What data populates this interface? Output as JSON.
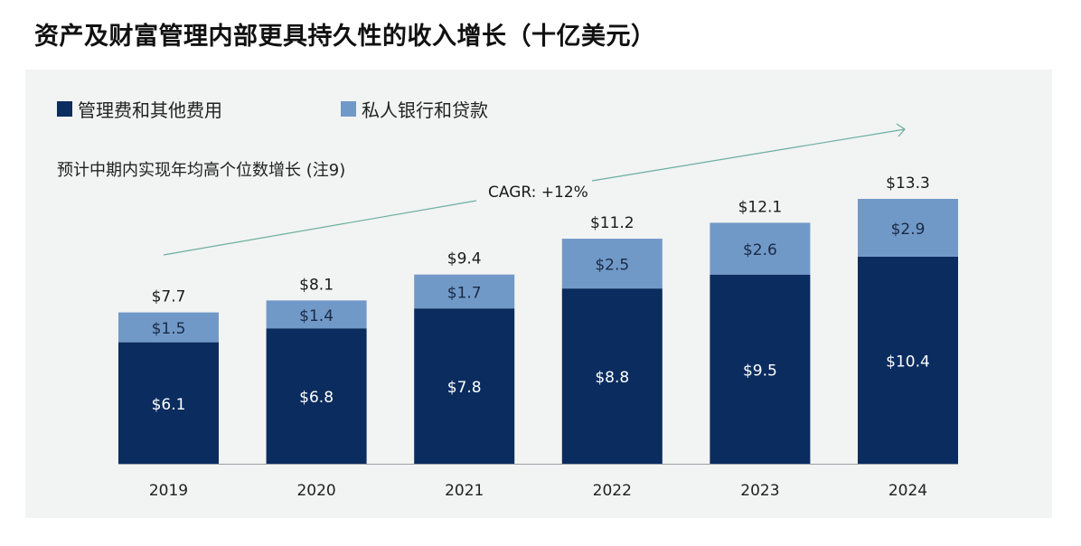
{
  "title": "资产及财富管理内部更具持久性的收入增长（十亿美元）",
  "legend": [
    {
      "label": "管理费和其他费用",
      "color": "#0b2c5f"
    },
    {
      "label": "私人银行和贷款",
      "color": "#7199c8"
    }
  ],
  "subtitle": "预计中期内实现年均高个位数增长 (注9)",
  "annotation": {
    "text": "CAGR: +12%",
    "line_color": "#6aaea0"
  },
  "chart_data": {
    "type": "bar",
    "stacked": true,
    "title": "资产及财富管理内部更具持久性的收入增长（十亿美元）",
    "xlabel": "",
    "ylabel": "",
    "ylim": [
      0,
      13.3
    ],
    "grid": false,
    "legend_position": "top-left",
    "categories": [
      "2019",
      "2020",
      "2021",
      "2022",
      "2023",
      "2024"
    ],
    "series": [
      {
        "name": "管理费和其他费用",
        "values": [
          6.1,
          6.8,
          7.8,
          8.8,
          9.5,
          10.4
        ],
        "labels": [
          "$6.1",
          "$6.8",
          "$7.8",
          "$8.8",
          "$9.5",
          "$10.4"
        ],
        "color": "#0b2c5f"
      },
      {
        "name": "私人银行和贷款",
        "values": [
          1.5,
          1.4,
          1.7,
          2.5,
          2.6,
          2.9
        ],
        "labels": [
          "$1.5",
          "$1.4",
          "$1.7",
          "$2.5",
          "$2.6",
          "$2.9"
        ],
        "color": "#7199c8"
      }
    ],
    "totals": [
      7.7,
      8.1,
      9.4,
      11.2,
      12.1,
      13.3
    ],
    "total_labels": [
      "$7.7",
      "$8.1",
      "$9.4",
      "$11.2",
      "$12.1",
      "$13.3"
    ],
    "annotations": [
      "CAGR: +12%"
    ]
  }
}
